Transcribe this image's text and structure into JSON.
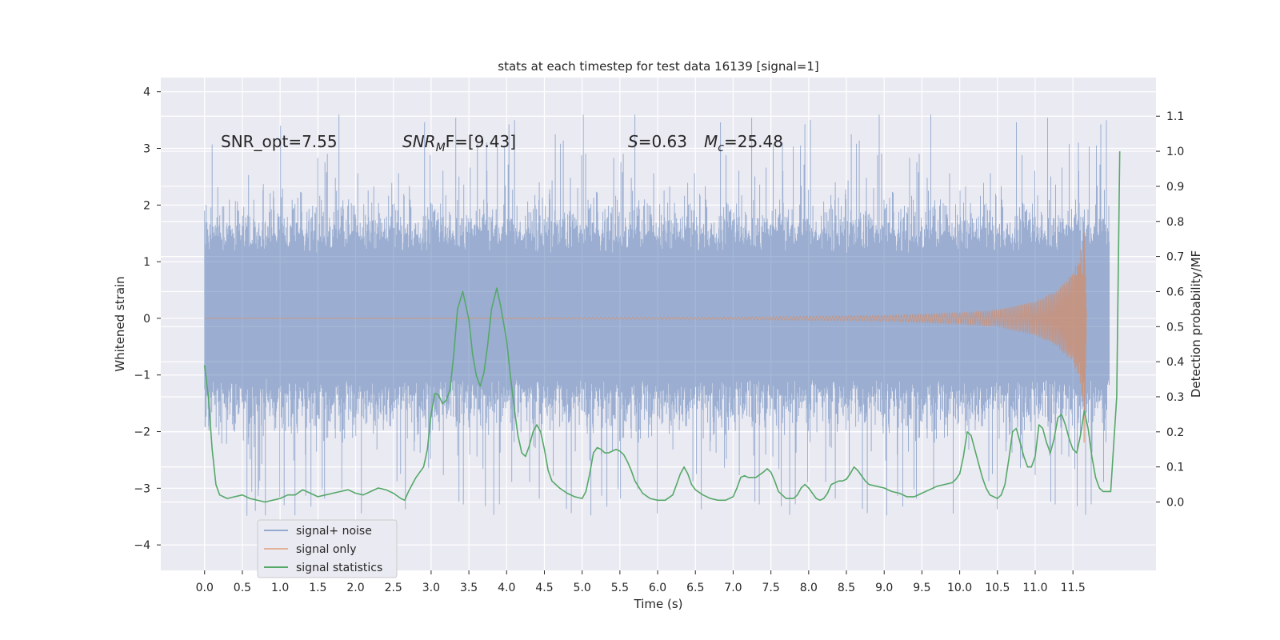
{
  "chart_data": {
    "type": "line",
    "title": "stats at each timestep for test data 16139 [signal=1]",
    "xlabel": "Time (s)",
    "ylabel": "Whitened strain",
    "y2label": "Detection probability/MF",
    "xlim": [
      -0.58,
      12.6
    ],
    "ylim": [
      -4.45,
      4.25
    ],
    "y2lim": [
      -0.195,
      1.21
    ],
    "x_ticks": [
      "0.0",
      "0.5",
      "1.0",
      "1.5",
      "2.0",
      "2.5",
      "3.0",
      "3.5",
      "4.0",
      "4.5",
      "5.0",
      "5.5",
      "6.0",
      "6.5",
      "7.0",
      "7.5",
      "8.0",
      "8.5",
      "9.0",
      "9.5",
      "10.0",
      "10.5",
      "11.0",
      "11.5"
    ],
    "y_ticks": [
      "4",
      "3",
      "2",
      "1",
      "0",
      "−1",
      "−2",
      "−3",
      "−4"
    ],
    "y2_ticks": [
      "1.1",
      "1.0",
      "0.9",
      "0.8",
      "0.7",
      "0.6",
      "0.5",
      "0.4",
      "0.3",
      "0.2",
      "0.1",
      "0.0"
    ],
    "grid": true,
    "legend_placement": "lower-left",
    "annotations": {
      "snr_opt": "SNR_opt=7.55",
      "snr_mf_base": "SNR",
      "snr_mf_sub": "M",
      "snr_mf_rest": "F=[9.43]",
      "s_sym": "S",
      "s_val": "=0.63",
      "mc_sym": "M",
      "mc_sub": "c",
      "mc_val": "=25.48"
    },
    "series": [
      {
        "name": "signal+ noise",
        "color": "#4c72b0",
        "style": "dense-noise",
        "x_range": [
          0.0,
          11.98
        ],
        "envelope_typical": [
          -1.6,
          1.8
        ],
        "extreme_range": [
          -4.1,
          3.9
        ]
      },
      {
        "name": "signal only",
        "color": "#dd8452",
        "style": "chirp",
        "x_range": [
          0.0,
          11.68
        ],
        "points": [
          [
            0.0,
            0.0
          ],
          [
            7.0,
            0.02
          ],
          [
            9.0,
            0.05
          ],
          [
            10.0,
            0.1
          ],
          [
            10.5,
            0.15
          ],
          [
            11.0,
            0.3
          ],
          [
            11.3,
            0.5
          ],
          [
            11.5,
            0.8
          ],
          [
            11.6,
            1.2
          ],
          [
            11.65,
            1.55
          ],
          [
            11.68,
            0.0
          ]
        ]
      },
      {
        "name": "signal statistics",
        "color": "#55a868",
        "style": "line",
        "axis": "right",
        "points": [
          [
            0.0,
            0.39
          ],
          [
            0.05,
            0.3
          ],
          [
            0.1,
            0.15
          ],
          [
            0.15,
            0.05
          ],
          [
            0.2,
            0.02
          ],
          [
            0.3,
            0.01
          ],
          [
            0.4,
            0.015
          ],
          [
            0.5,
            0.02
          ],
          [
            0.6,
            0.01
          ],
          [
            0.7,
            0.005
          ],
          [
            0.8,
            0.0
          ],
          [
            0.9,
            0.005
          ],
          [
            1.0,
            0.01
          ],
          [
            1.1,
            0.02
          ],
          [
            1.2,
            0.02
          ],
          [
            1.3,
            0.035
          ],
          [
            1.4,
            0.025
          ],
          [
            1.5,
            0.015
          ],
          [
            1.6,
            0.02
          ],
          [
            1.7,
            0.025
          ],
          [
            1.8,
            0.03
          ],
          [
            1.9,
            0.035
          ],
          [
            2.0,
            0.025
          ],
          [
            2.1,
            0.02
          ],
          [
            2.2,
            0.03
          ],
          [
            2.3,
            0.04
          ],
          [
            2.4,
            0.035
          ],
          [
            2.5,
            0.025
          ],
          [
            2.6,
            0.01
          ],
          [
            2.65,
            0.005
          ],
          [
            2.7,
            0.03
          ],
          [
            2.8,
            0.07
          ],
          [
            2.9,
            0.1
          ],
          [
            2.95,
            0.15
          ],
          [
            3.0,
            0.25
          ],
          [
            3.05,
            0.31
          ],
          [
            3.1,
            0.305
          ],
          [
            3.15,
            0.28
          ],
          [
            3.2,
            0.29
          ],
          [
            3.25,
            0.32
          ],
          [
            3.3,
            0.42
          ],
          [
            3.35,
            0.55
          ],
          [
            3.42,
            0.6
          ],
          [
            3.5,
            0.52
          ],
          [
            3.55,
            0.42
          ],
          [
            3.6,
            0.36
          ],
          [
            3.65,
            0.33
          ],
          [
            3.7,
            0.37
          ],
          [
            3.75,
            0.45
          ],
          [
            3.8,
            0.55
          ],
          [
            3.87,
            0.61
          ],
          [
            3.92,
            0.56
          ],
          [
            4.0,
            0.46
          ],
          [
            4.05,
            0.36
          ],
          [
            4.1,
            0.27
          ],
          [
            4.15,
            0.19
          ],
          [
            4.2,
            0.14
          ],
          [
            4.25,
            0.13
          ],
          [
            4.3,
            0.16
          ],
          [
            4.35,
            0.2
          ],
          [
            4.4,
            0.22
          ],
          [
            4.45,
            0.2
          ],
          [
            4.5,
            0.15
          ],
          [
            4.55,
            0.09
          ],
          [
            4.6,
            0.06
          ],
          [
            4.7,
            0.04
          ],
          [
            4.8,
            0.025
          ],
          [
            4.9,
            0.015
          ],
          [
            5.0,
            0.01
          ],
          [
            5.05,
            0.03
          ],
          [
            5.1,
            0.08
          ],
          [
            5.15,
            0.14
          ],
          [
            5.2,
            0.155
          ],
          [
            5.25,
            0.15
          ],
          [
            5.3,
            0.14
          ],
          [
            5.35,
            0.14
          ],
          [
            5.4,
            0.145
          ],
          [
            5.45,
            0.15
          ],
          [
            5.5,
            0.145
          ],
          [
            5.55,
            0.135
          ],
          [
            5.6,
            0.115
          ],
          [
            5.65,
            0.09
          ],
          [
            5.7,
            0.06
          ],
          [
            5.8,
            0.025
          ],
          [
            5.9,
            0.01
          ],
          [
            6.0,
            0.005
          ],
          [
            6.1,
            0.005
          ],
          [
            6.2,
            0.02
          ],
          [
            6.25,
            0.05
          ],
          [
            6.3,
            0.08
          ],
          [
            6.35,
            0.1
          ],
          [
            6.4,
            0.08
          ],
          [
            6.45,
            0.05
          ],
          [
            6.5,
            0.035
          ],
          [
            6.6,
            0.02
          ],
          [
            6.7,
            0.01
          ],
          [
            6.8,
            0.005
          ],
          [
            6.9,
            0.005
          ],
          [
            7.0,
            0.015
          ],
          [
            7.05,
            0.04
          ],
          [
            7.1,
            0.07
          ],
          [
            7.15,
            0.075
          ],
          [
            7.2,
            0.07
          ],
          [
            7.3,
            0.07
          ],
          [
            7.4,
            0.085
          ],
          [
            7.45,
            0.095
          ],
          [
            7.5,
            0.085
          ],
          [
            7.55,
            0.06
          ],
          [
            7.6,
            0.03
          ],
          [
            7.7,
            0.01
          ],
          [
            7.8,
            0.01
          ],
          [
            7.85,
            0.02
          ],
          [
            7.9,
            0.04
          ],
          [
            7.95,
            0.05
          ],
          [
            8.0,
            0.04
          ],
          [
            8.05,
            0.025
          ],
          [
            8.1,
            0.01
          ],
          [
            8.15,
            0.005
          ],
          [
            8.2,
            0.01
          ],
          [
            8.25,
            0.025
          ],
          [
            8.3,
            0.05
          ],
          [
            8.4,
            0.06
          ],
          [
            8.45,
            0.06
          ],
          [
            8.5,
            0.065
          ],
          [
            8.55,
            0.08
          ],
          [
            8.6,
            0.1
          ],
          [
            8.65,
            0.09
          ],
          [
            8.7,
            0.075
          ],
          [
            8.75,
            0.06
          ],
          [
            8.8,
            0.05
          ],
          [
            8.9,
            0.045
          ],
          [
            9.0,
            0.04
          ],
          [
            9.1,
            0.03
          ],
          [
            9.2,
            0.025
          ],
          [
            9.3,
            0.015
          ],
          [
            9.4,
            0.015
          ],
          [
            9.5,
            0.025
          ],
          [
            9.6,
            0.035
          ],
          [
            9.7,
            0.045
          ],
          [
            9.8,
            0.05
          ],
          [
            9.9,
            0.055
          ],
          [
            9.95,
            0.065
          ],
          [
            10.0,
            0.08
          ],
          [
            10.05,
            0.13
          ],
          [
            10.1,
            0.2
          ],
          [
            10.15,
            0.19
          ],
          [
            10.2,
            0.15
          ],
          [
            10.25,
            0.11
          ],
          [
            10.3,
            0.07
          ],
          [
            10.35,
            0.04
          ],
          [
            10.4,
            0.02
          ],
          [
            10.5,
            0.01
          ],
          [
            10.55,
            0.02
          ],
          [
            10.6,
            0.05
          ],
          [
            10.65,
            0.12
          ],
          [
            10.7,
            0.2
          ],
          [
            10.75,
            0.21
          ],
          [
            10.8,
            0.17
          ],
          [
            10.85,
            0.13
          ],
          [
            10.9,
            0.1
          ],
          [
            10.95,
            0.1
          ],
          [
            11.0,
            0.13
          ],
          [
            11.05,
            0.22
          ],
          [
            11.1,
            0.21
          ],
          [
            11.15,
            0.17
          ],
          [
            11.2,
            0.14
          ],
          [
            11.25,
            0.18
          ],
          [
            11.3,
            0.24
          ],
          [
            11.35,
            0.25
          ],
          [
            11.4,
            0.22
          ],
          [
            11.45,
            0.18
          ],
          [
            11.5,
            0.15
          ],
          [
            11.55,
            0.14
          ],
          [
            11.6,
            0.19
          ],
          [
            11.65,
            0.26
          ],
          [
            11.7,
            0.21
          ],
          [
            11.75,
            0.13
          ],
          [
            11.8,
            0.07
          ],
          [
            11.85,
            0.04
          ],
          [
            11.9,
            0.03
          ],
          [
            11.95,
            0.03
          ],
          [
            12.0,
            0.03
          ]
        ]
      }
    ]
  }
}
